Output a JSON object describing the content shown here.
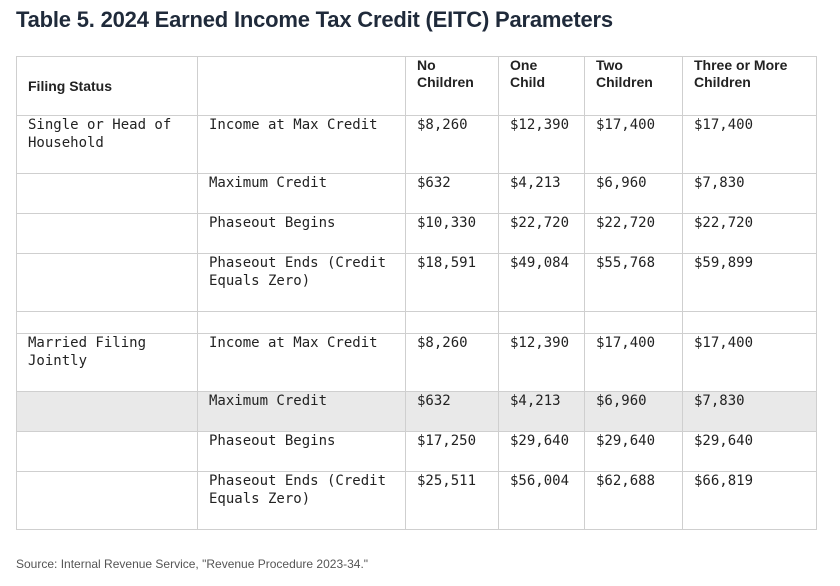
{
  "title": "Table 5. 2024 Earned Income Tax Credit (EITC) Parameters",
  "headers": [
    "Filing Status",
    "",
    "No Children",
    "One Child",
    "Two Children",
    "Three or More Children"
  ],
  "groups": [
    {
      "status": "Single or Head of Household",
      "rows": [
        {
          "label": "Income at Max Credit",
          "values": [
            "$8,260",
            "$12,390",
            "$17,400",
            "$17,400"
          ]
        },
        {
          "label": "Maximum Credit",
          "values": [
            "$632",
            "$4,213",
            "$6,960",
            "$7,830"
          ]
        },
        {
          "label": "Phaseout Begins",
          "values": [
            "$10,330",
            "$22,720",
            "$22,720",
            "$22,720"
          ]
        },
        {
          "label": "Phaseout Ends (Credit Equals Zero)",
          "values": [
            "$18,591",
            "$49,084",
            "$55,768",
            "$59,899"
          ]
        }
      ]
    },
    {
      "status": "Married Filing Jointly",
      "rows": [
        {
          "label": "Income at Max Credit",
          "values": [
            "$8,260",
            "$12,390",
            "$17,400",
            "$17,400"
          ]
        },
        {
          "label": "Maximum Credit",
          "values": [
            "$632",
            "$4,213",
            "$6,960",
            "$7,830"
          ]
        },
        {
          "label": "Phaseout Begins",
          "values": [
            "$17,250",
            "$29,640",
            "$29,640",
            "$29,640"
          ]
        },
        {
          "label": "Phaseout Ends (Credit Equals Zero)",
          "values": [
            "$25,511",
            "$56,004",
            "$62,688",
            "$66,819"
          ]
        }
      ]
    }
  ],
  "source": "Source: Internal Revenue Service, \"Revenue Procedure 2023-34.\"",
  "colors": {
    "title": "#1f2a3a",
    "border": "#cfcfcf",
    "highlight_row": "#e9e9e9"
  }
}
